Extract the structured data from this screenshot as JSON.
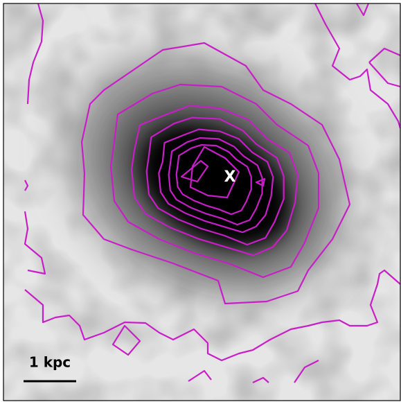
{
  "marker": "X",
  "scale_bar": "1 kpc"
}
